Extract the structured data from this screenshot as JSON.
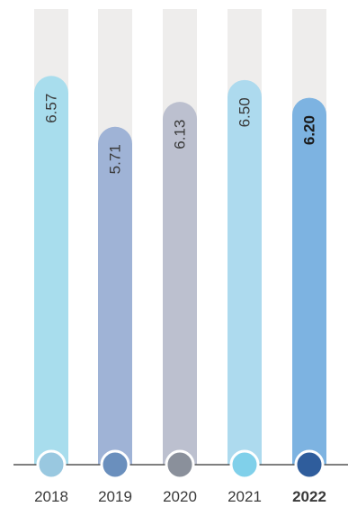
{
  "chart_data": {
    "type": "bar",
    "categories": [
      "2018",
      "2019",
      "2020",
      "2021",
      "2022"
    ],
    "values": [
      6.57,
      5.71,
      6.13,
      6.5,
      6.2
    ],
    "value_labels": [
      "6.57",
      "5.71",
      "6.13",
      "6.50",
      "6.20"
    ],
    "highlight_category": "2022",
    "ylim": [
      0,
      7.7
    ],
    "grid": false,
    "legend": "none",
    "colors": {
      "bars": [
        "#a8dded",
        "#9fb3d6",
        "#bcc0cf",
        "#addaee",
        "#7db3e1"
      ],
      "dots": [
        "#99c8e0",
        "#6a8fbd",
        "#8a909b",
        "#80d0ea",
        "#2f5d9c"
      ],
      "track": "#eeedec",
      "baseline": "#555555",
      "highlight_label": "#2f5d9c"
    }
  }
}
